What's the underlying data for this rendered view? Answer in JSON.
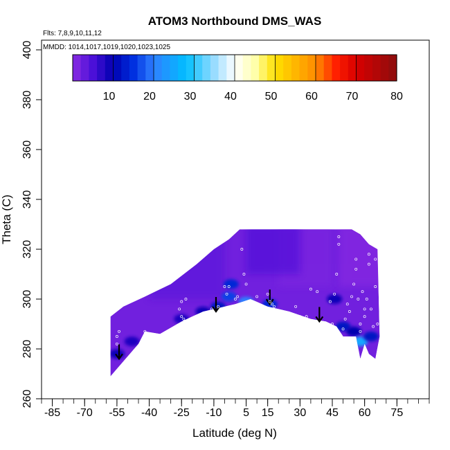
{
  "chart_data": {
    "type": "heatmap",
    "title": "ATOM3 Northbound DMS_WAS",
    "flights_note": "Flts: 7,8,9,10,11,12",
    "dates_note": "MMDD: 1014,1017,1019,1020,1023,1025",
    "xlabel": "Latitude (deg N)",
    "ylabel": "Theta (C)",
    "xlim": [
      -90,
      90
    ],
    "ylim": [
      260,
      405
    ],
    "x_ticks": [
      -85,
      -70,
      -55,
      -40,
      -25,
      -10,
      5,
      15,
      30,
      45,
      60,
      75
    ],
    "x_minor_step": 5,
    "y_ticks": [
      260,
      280,
      300,
      320,
      340,
      360,
      380,
      400
    ],
    "colorbar": {
      "min": 0,
      "max": 80,
      "ticks": [
        10,
        20,
        30,
        40,
        50,
        60,
        70,
        80
      ],
      "stops": [
        {
          "v": 0,
          "color": "#8a2be2"
        },
        {
          "v": 5,
          "color": "#4b10d8"
        },
        {
          "v": 10,
          "color": "#0000b0"
        },
        {
          "v": 15,
          "color": "#0030e0"
        },
        {
          "v": 20,
          "color": "#2f80ff"
        },
        {
          "v": 28,
          "color": "#00bfff"
        },
        {
          "v": 35,
          "color": "#99dcff"
        },
        {
          "v": 40,
          "color": "#ffffff"
        },
        {
          "v": 45,
          "color": "#ffffaa"
        },
        {
          "v": 50,
          "color": "#ffe000"
        },
        {
          "v": 60,
          "color": "#ff8c00"
        },
        {
          "v": 65,
          "color": "#ff2000"
        },
        {
          "v": 70,
          "color": "#d80000"
        },
        {
          "v": 80,
          "color": "#8b0d0d"
        }
      ]
    },
    "field_region": {
      "description_points": [
        {
          "lat": -58,
          "theta": 269
        },
        {
          "lat": -56,
          "theta": 271
        },
        {
          "lat": -45,
          "theta": 282
        },
        {
          "lat": -42,
          "theta": 287
        },
        {
          "lat": -35,
          "theta": 286
        },
        {
          "lat": -25,
          "theta": 291
        },
        {
          "lat": -15,
          "theta": 295
        },
        {
          "lat": 0,
          "theta": 298
        },
        {
          "lat": 7,
          "theta": 300
        },
        {
          "lat": 15,
          "theta": 297
        },
        {
          "lat": 25,
          "theta": 295
        },
        {
          "lat": 35,
          "theta": 292
        },
        {
          "lat": 42,
          "theta": 291
        },
        {
          "lat": 47,
          "theta": 289
        },
        {
          "lat": 50,
          "theta": 285
        },
        {
          "lat": 56,
          "theta": 285
        },
        {
          "lat": 58,
          "theta": 276
        },
        {
          "lat": 60,
          "theta": 282
        },
        {
          "lat": 62,
          "theta": 278
        },
        {
          "lat": 65,
          "theta": 276
        },
        {
          "lat": 67,
          "theta": 285
        },
        {
          "lat": 66,
          "theta": 320
        },
        {
          "lat": 62,
          "theta": 322
        },
        {
          "lat": 58,
          "theta": 326
        },
        {
          "lat": 54,
          "theta": 328
        },
        {
          "lat": 2,
          "theta": 328
        },
        {
          "lat": -3,
          "theta": 324
        },
        {
          "lat": -10,
          "theta": 320
        },
        {
          "lat": -18,
          "theta": 314
        },
        {
          "lat": -30,
          "theta": 306
        },
        {
          "lat": -42,
          "theta": 301
        },
        {
          "lat": -52,
          "theta": 297
        },
        {
          "lat": -58,
          "theta": 293
        }
      ]
    },
    "hotspots": [
      {
        "lat": -55,
        "theta": 278,
        "value": 9
      },
      {
        "lat": -48,
        "theta": 283,
        "value": 8
      },
      {
        "lat": -8,
        "theta": 297,
        "value": 12
      },
      {
        "lat": -3,
        "theta": 301,
        "value": 16
      },
      {
        "lat": -2,
        "theta": 306,
        "value": 14
      },
      {
        "lat": 5,
        "theta": 299,
        "value": 20
      },
      {
        "lat": 16,
        "theta": 298,
        "value": 14
      },
      {
        "lat": 46,
        "theta": 300,
        "value": 9
      },
      {
        "lat": 50,
        "theta": 289,
        "value": 12
      },
      {
        "lat": 55,
        "theta": 287,
        "value": 10
      },
      {
        "lat": 58,
        "theta": 283,
        "value": 25
      },
      {
        "lat": 63,
        "theta": 285,
        "value": 12
      },
      {
        "lat": -25,
        "theta": 292,
        "value": 8
      },
      {
        "lat": -15,
        "theta": 295,
        "value": 9
      }
    ],
    "arrows_lat": [
      -54,
      -9,
      16,
      39
    ],
    "arrow_tips_theta": [
      276,
      295,
      298,
      291
    ],
    "sample_points": [
      {
        "lat": -55,
        "theta": 285
      },
      {
        "lat": -55,
        "theta": 282
      },
      {
        "lat": -54,
        "theta": 287
      },
      {
        "lat": -42,
        "theta": 287
      },
      {
        "lat": -26,
        "theta": 296
      },
      {
        "lat": -25,
        "theta": 293
      },
      {
        "lat": -24,
        "theta": 292
      },
      {
        "lat": -25,
        "theta": 299
      },
      {
        "lat": -23,
        "theta": 300
      },
      {
        "lat": -11,
        "theta": 296
      },
      {
        "lat": -8,
        "theta": 297
      },
      {
        "lat": -5,
        "theta": 305
      },
      {
        "lat": -4,
        "theta": 302
      },
      {
        "lat": -3,
        "theta": 305
      },
      {
        "lat": 0,
        "theta": 300
      },
      {
        "lat": 1,
        "theta": 301
      },
      {
        "lat": 3,
        "theta": 320
      },
      {
        "lat": 4,
        "theta": 310
      },
      {
        "lat": 5,
        "theta": 306
      },
      {
        "lat": 10,
        "theta": 301
      },
      {
        "lat": 15,
        "theta": 302
      },
      {
        "lat": 16,
        "theta": 299
      },
      {
        "lat": 17,
        "theta": 298
      },
      {
        "lat": 18,
        "theta": 297
      },
      {
        "lat": 28,
        "theta": 297
      },
      {
        "lat": 30,
        "theta": 293
      },
      {
        "lat": 33,
        "theta": 293
      },
      {
        "lat": 35,
        "theta": 304
      },
      {
        "lat": 38,
        "theta": 303
      },
      {
        "lat": 44,
        "theta": 299
      },
      {
        "lat": 45,
        "theta": 290
      },
      {
        "lat": 46,
        "theta": 302
      },
      {
        "lat": 47,
        "theta": 310
      },
      {
        "lat": 48,
        "theta": 325
      },
      {
        "lat": 48,
        "theta": 322
      },
      {
        "lat": 50,
        "theta": 288
      },
      {
        "lat": 51,
        "theta": 292
      },
      {
        "lat": 52,
        "theta": 298
      },
      {
        "lat": 53,
        "theta": 295
      },
      {
        "lat": 54,
        "theta": 301
      },
      {
        "lat": 55,
        "theta": 306
      },
      {
        "lat": 56,
        "theta": 316
      },
      {
        "lat": 56,
        "theta": 312
      },
      {
        "lat": 57,
        "theta": 300
      },
      {
        "lat": 58,
        "theta": 290
      },
      {
        "lat": 58,
        "theta": 287
      },
      {
        "lat": 59,
        "theta": 303
      },
      {
        "lat": 60,
        "theta": 296
      },
      {
        "lat": 60,
        "theta": 293
      },
      {
        "lat": 61,
        "theta": 300
      },
      {
        "lat": 62,
        "theta": 318
      },
      {
        "lat": 62,
        "theta": 314
      },
      {
        "lat": 63,
        "theta": 296
      },
      {
        "lat": 64,
        "theta": 289
      },
      {
        "lat": 65,
        "theta": 316
      },
      {
        "lat": 65,
        "theta": 305
      },
      {
        "lat": 66,
        "theta": 290
      }
    ]
  }
}
